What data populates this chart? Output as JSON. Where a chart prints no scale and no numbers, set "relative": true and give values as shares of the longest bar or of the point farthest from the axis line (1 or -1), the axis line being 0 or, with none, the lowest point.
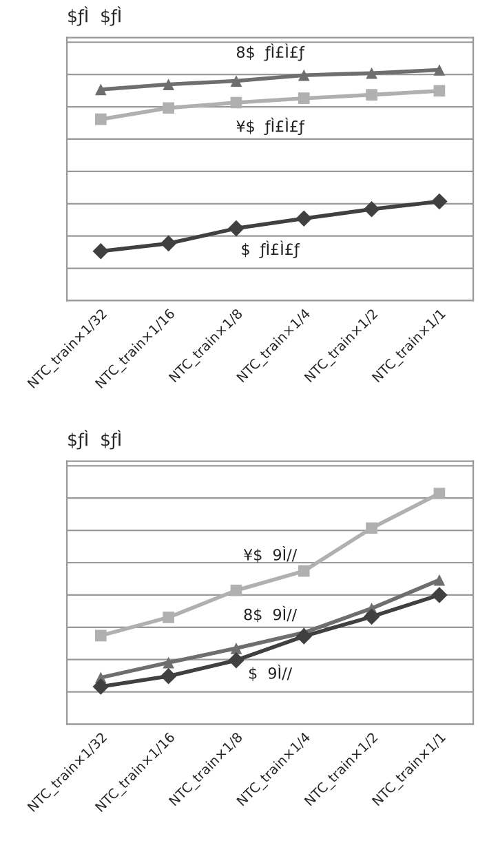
{
  "chart_data": [
    {
      "type": "line",
      "title": "$ƒÌ  $ƒÌ",
      "relative": true,
      "categories": [
        "NTC_train×1/32",
        "NTC_train×1/16",
        "NTC_train×1/8",
        "NTC_train×1/4",
        "NTC_train×1/2",
        "NTC_train×1/1"
      ],
      "series": [
        {
          "name": "8$  ƒÌ£Ì£ƒ",
          "color": "#6e6e6e",
          "marker": "triangle",
          "values": [
            0.915,
            0.937,
            0.952,
            0.977,
            0.986,
            1.0
          ]
        },
        {
          "name": "¥$  ƒÌ£Ì£ƒ",
          "color": "#b0b0b0",
          "marker": "square",
          "values": [
            0.786,
            0.835,
            0.858,
            0.877,
            0.892,
            0.909
          ]
        },
        {
          "name": "$  ƒÌ£Ì£ƒ",
          "color": "#404040",
          "marker": "diamond",
          "values": [
            0.214,
            0.248,
            0.313,
            0.356,
            0.396,
            0.43
          ]
        }
      ],
      "grid": "y"
    },
    {
      "type": "line",
      "title": "$ƒÌ  $ƒÌ",
      "relative": true,
      "categories": [
        "NTC_train×1/32",
        "NTC_train×1/16",
        "NTC_train×1/8",
        "NTC_train×1/4",
        "NTC_train×1/2",
        "NTC_train×1/1"
      ],
      "series": [
        {
          "name": "¥$  9Ì//",
          "color": "#b0b0b0",
          "marker": "square",
          "values": [
            0.384,
            0.463,
            0.58,
            0.664,
            0.85,
            1.0
          ]
        },
        {
          "name": "8$  9Ì//",
          "color": "#6e6e6e",
          "marker": "triangle",
          "values": [
            0.202,
            0.267,
            0.329,
            0.397,
            0.502,
            0.625
          ]
        },
        {
          "name": "$  9Ì//",
          "color": "#404040",
          "marker": "diamond",
          "values": [
            0.163,
            0.208,
            0.277,
            0.381,
            0.466,
            0.56
          ]
        }
      ],
      "grid": "y"
    }
  ]
}
